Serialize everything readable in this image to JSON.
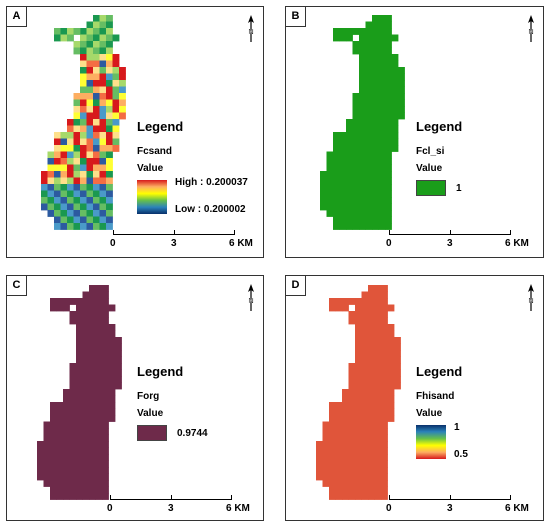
{
  "panels": {
    "a": {
      "label": "A",
      "legend_title": "Legend",
      "layer": "Fcsand",
      "value_label": "Value",
      "high": "High : 0.200037",
      "low": "Low : 0.200002",
      "gradient": [
        "#d7191c",
        "#fdae61",
        "#ffff00",
        "#66c04a",
        "#2b83ba",
        "#08306b"
      ],
      "scale": [
        "0",
        "3",
        "6 KM"
      ]
    },
    "b": {
      "label": "B",
      "legend_title": "Legend",
      "layer": "Fcl_si",
      "value_label": "Value",
      "class_value": "1",
      "color": "#1a9d1a",
      "scale": [
        "0",
        "3",
        "6 KM"
      ]
    },
    "c": {
      "label": "C",
      "legend_title": "Legend",
      "layer": "Forg",
      "value_label": "Value",
      "class_value": "0.9744",
      "color": "#6e2a4a",
      "scale": [
        "0",
        "3",
        "6 KM"
      ]
    },
    "d": {
      "label": "D",
      "legend_title": "Legend",
      "layer": "Fhisand",
      "value_label": "Value",
      "high": "1",
      "low": "0.5",
      "gradient": [
        "#08306b",
        "#2b83ba",
        "#66c04a",
        "#ffff00",
        "#fdae61",
        "#d7191c"
      ],
      "color": "#e0553a",
      "scale": [
        "0",
        "3",
        "6 KM"
      ]
    }
  },
  "icons": {
    "north_arrow": "north-arrow-icon"
  }
}
